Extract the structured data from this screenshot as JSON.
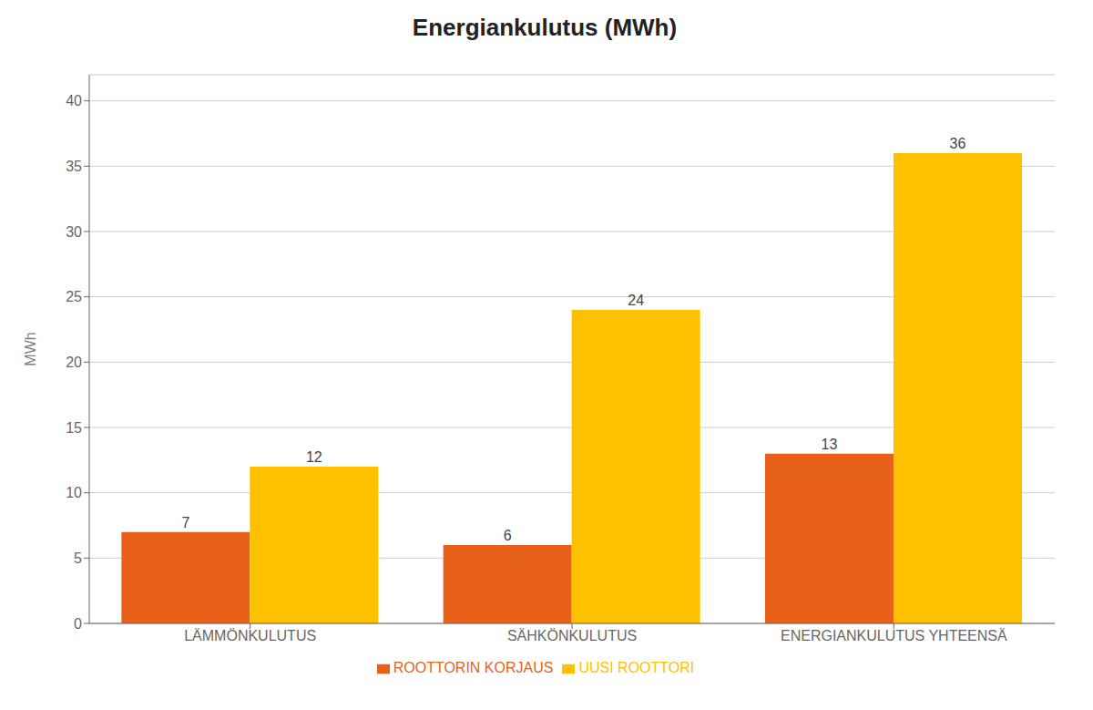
{
  "chart_data": {
    "type": "bar",
    "title": "Energiankulutus (MWh)",
    "categories": [
      "LÄMMÖNKULUTUS",
      "SÄHKÖNKULUTUS",
      "ENERGIANKULUTUS YHTEENSÄ"
    ],
    "series": [
      {
        "name": "ROOTTORIN KORJAUS",
        "color": "#E8611A",
        "values": [
          7,
          6,
          13
        ]
      },
      {
        "name": "UUSI ROOTTORI",
        "color": "#FFC000",
        "values": [
          12,
          24,
          36
        ]
      }
    ],
    "ylabel": "MWh",
    "ylim": [
      0,
      42
    ],
    "yticks": [
      0,
      5,
      10,
      15,
      20,
      25,
      30,
      35,
      40
    ],
    "grid": true,
    "legend": "bottom",
    "data_labels": true
  }
}
